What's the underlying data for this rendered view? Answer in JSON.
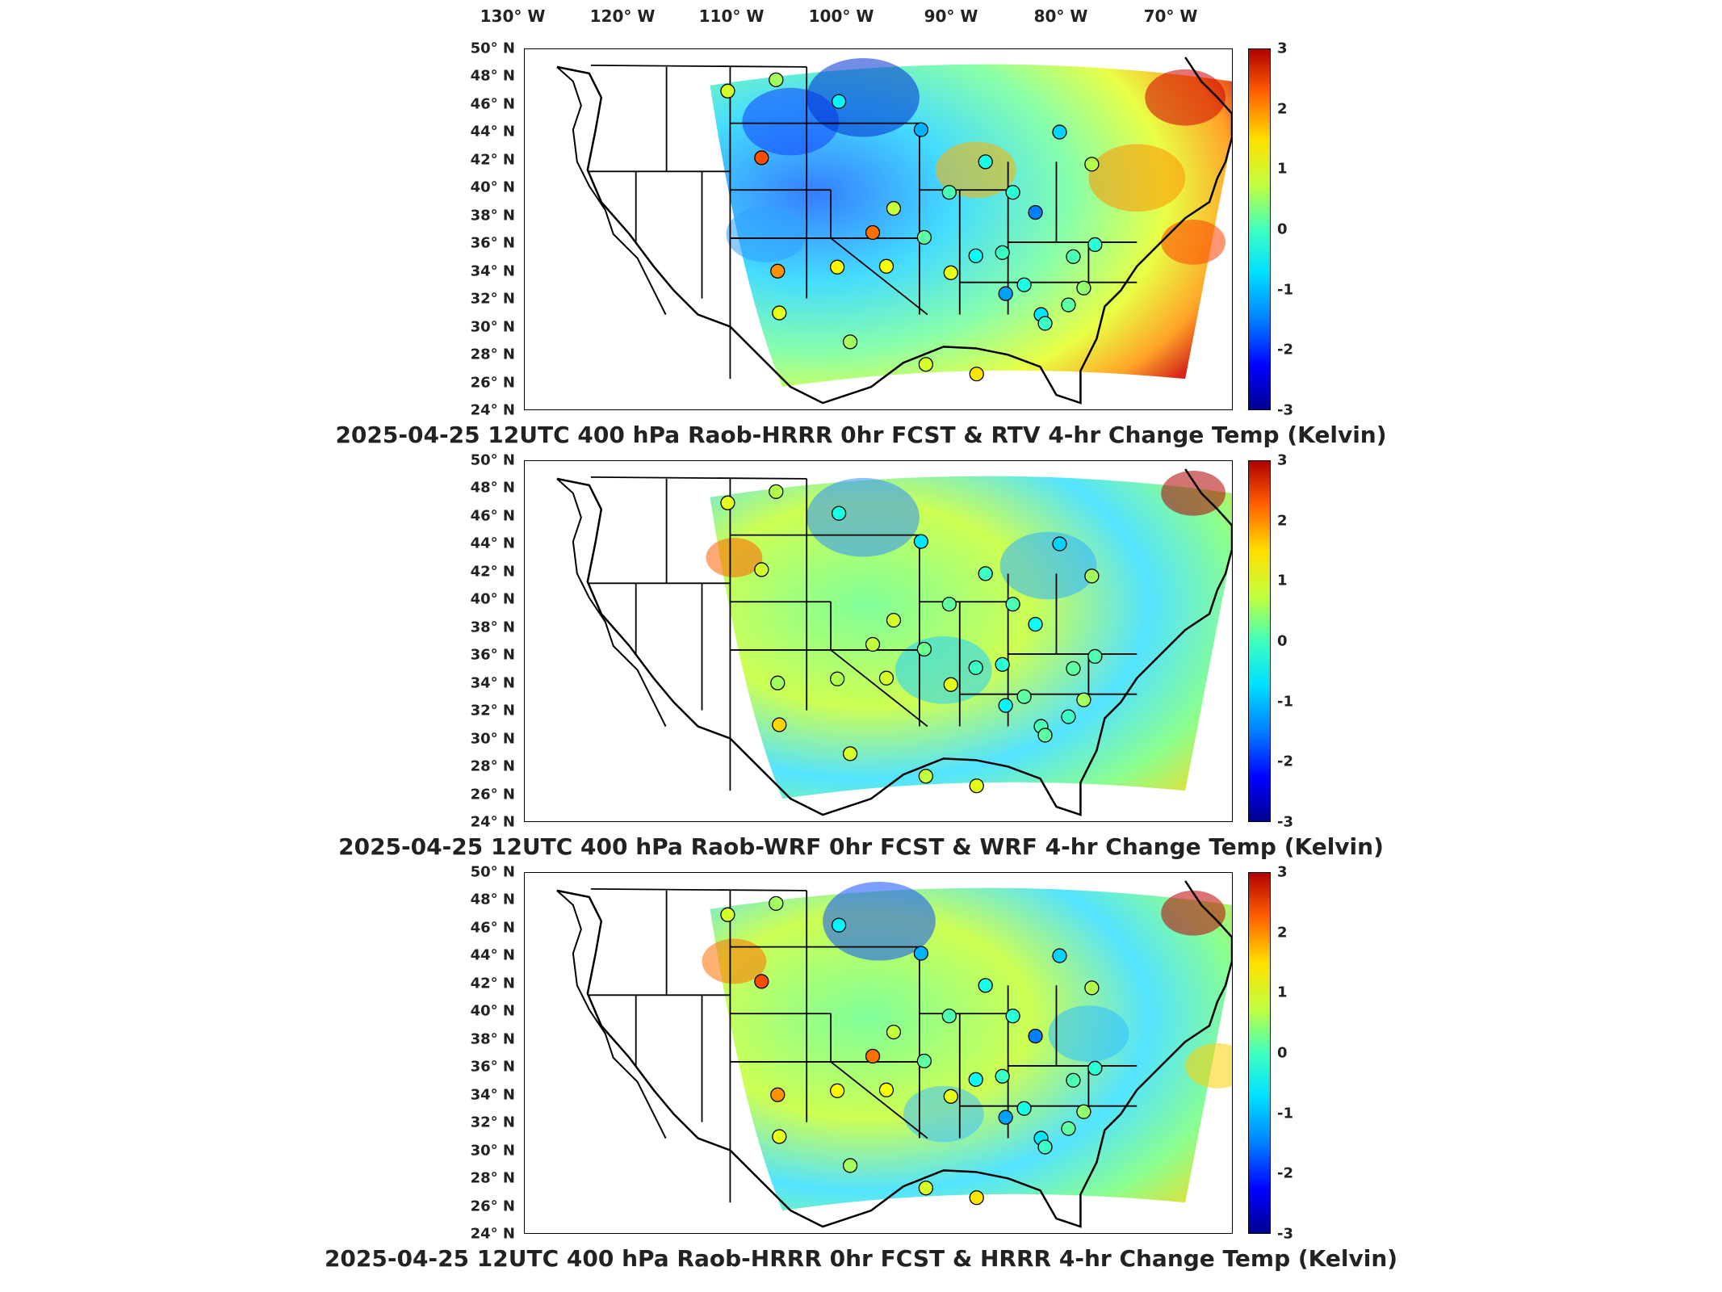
{
  "longitude_labels": [
    "130° W",
    "120° W",
    "110° W",
    "100° W",
    "90° W",
    "80° W",
    "70° W"
  ],
  "latitude_labels": [
    "50° N",
    "48° N",
    "46° N",
    "44° N",
    "42° N",
    "40° N",
    "38° N",
    "36° N",
    "34° N",
    "32° N",
    "30° N",
    "28° N",
    "26° N",
    "24° N"
  ],
  "colorbar_ticks": [
    "3",
    "2",
    "1",
    "0",
    "-1",
    "-2",
    "-3"
  ],
  "colorbar_range": [
    -3,
    3
  ],
  "colormap": "jet",
  "panels": [
    {
      "caption": "2025-04-25 12UTC 400 hPa Raob-HRRR 0hr FCST & RTV 4-hr Change Temp (Kelvin)",
      "stations": [
        {
          "v": 0.5
        },
        {
          "v": 0.2
        },
        {
          "v": -0.8
        },
        {
          "v": 1.8
        },
        {
          "v": -1.2
        },
        {
          "v": -0.6
        },
        {
          "v": -1.0
        },
        {
          "v": 0.3
        },
        {
          "v": -0.5
        },
        {
          "v": -0.3
        },
        {
          "v": -1.5
        },
        {
          "v": 1.6
        },
        {
          "v": 0.4
        },
        {
          "v": -0.2
        },
        {
          "v": 1.4
        },
        {
          "v": 0.8
        },
        {
          "v": 0.7
        },
        {
          "v": 0.6
        },
        {
          "v": -0.7
        },
        {
          "v": -0.4
        },
        {
          "v": -1.3
        },
        {
          "v": -0.6
        },
        {
          "v": 0.6
        },
        {
          "v": -0.9
        },
        {
          "v": -0.3
        },
        {
          "v": 0.1
        },
        {
          "v": -0.5
        },
        {
          "v": -0.2
        },
        {
          "v": -0.4
        },
        {
          "v": 0.9
        },
        {
          "v": 0.5
        },
        {
          "v": 0.2
        }
      ]
    },
    {
      "caption": "2025-04-25 12UTC 400 hPa Raob-WRF 0hr FCST & WRF 4-hr Change Temp (Kelvin)",
      "stations": [
        {
          "v": 0.6
        },
        {
          "v": 0.3
        },
        {
          "v": -0.6
        },
        {
          "v": 0.5
        },
        {
          "v": -0.9
        },
        {
          "v": -0.4
        },
        {
          "v": -1.0
        },
        {
          "v": 0.2
        },
        {
          "v": -0.3
        },
        {
          "v": -0.2
        },
        {
          "v": -0.7
        },
        {
          "v": 0.4
        },
        {
          "v": 0.5
        },
        {
          "v": -0.1
        },
        {
          "v": 0.2
        },
        {
          "v": 0.3
        },
        {
          "v": 0.5
        },
        {
          "v": 0.6
        },
        {
          "v": -0.4
        },
        {
          "v": -0.5
        },
        {
          "v": -0.8
        },
        {
          "v": -0.2
        },
        {
          "v": 1.0
        },
        {
          "v": -0.3
        },
        {
          "v": -0.2
        },
        {
          "v": 0.2
        },
        {
          "v": -0.3
        },
        {
          "v": -0.4
        },
        {
          "v": -0.2
        },
        {
          "v": 0.6
        },
        {
          "v": 0.4
        },
        {
          "v": 0.5
        }
      ]
    },
    {
      "caption": "2025-04-25 12UTC 400 hPa Raob-HRRR 0hr FCST & HRRR 4-hr Change Temp (Kelvin)",
      "stations": [
        {
          "v": 0.5
        },
        {
          "v": 0.2
        },
        {
          "v": -0.8
        },
        {
          "v": 1.8
        },
        {
          "v": -1.2
        },
        {
          "v": -0.6
        },
        {
          "v": -1.0
        },
        {
          "v": 0.3
        },
        {
          "v": -0.5
        },
        {
          "v": -0.3
        },
        {
          "v": -1.5
        },
        {
          "v": 1.6
        },
        {
          "v": 0.4
        },
        {
          "v": -0.2
        },
        {
          "v": 1.4
        },
        {
          "v": 0.8
        },
        {
          "v": 0.7
        },
        {
          "v": 0.6
        },
        {
          "v": -0.7
        },
        {
          "v": -0.4
        },
        {
          "v": -1.3
        },
        {
          "v": -0.6
        },
        {
          "v": 0.6
        },
        {
          "v": -0.9
        },
        {
          "v": -0.3
        },
        {
          "v": 0.1
        },
        {
          "v": -0.5
        },
        {
          "v": -0.2
        },
        {
          "v": -0.4
        },
        {
          "v": 0.9
        },
        {
          "v": 0.5
        },
        {
          "v": 0.2
        }
      ]
    }
  ]
}
